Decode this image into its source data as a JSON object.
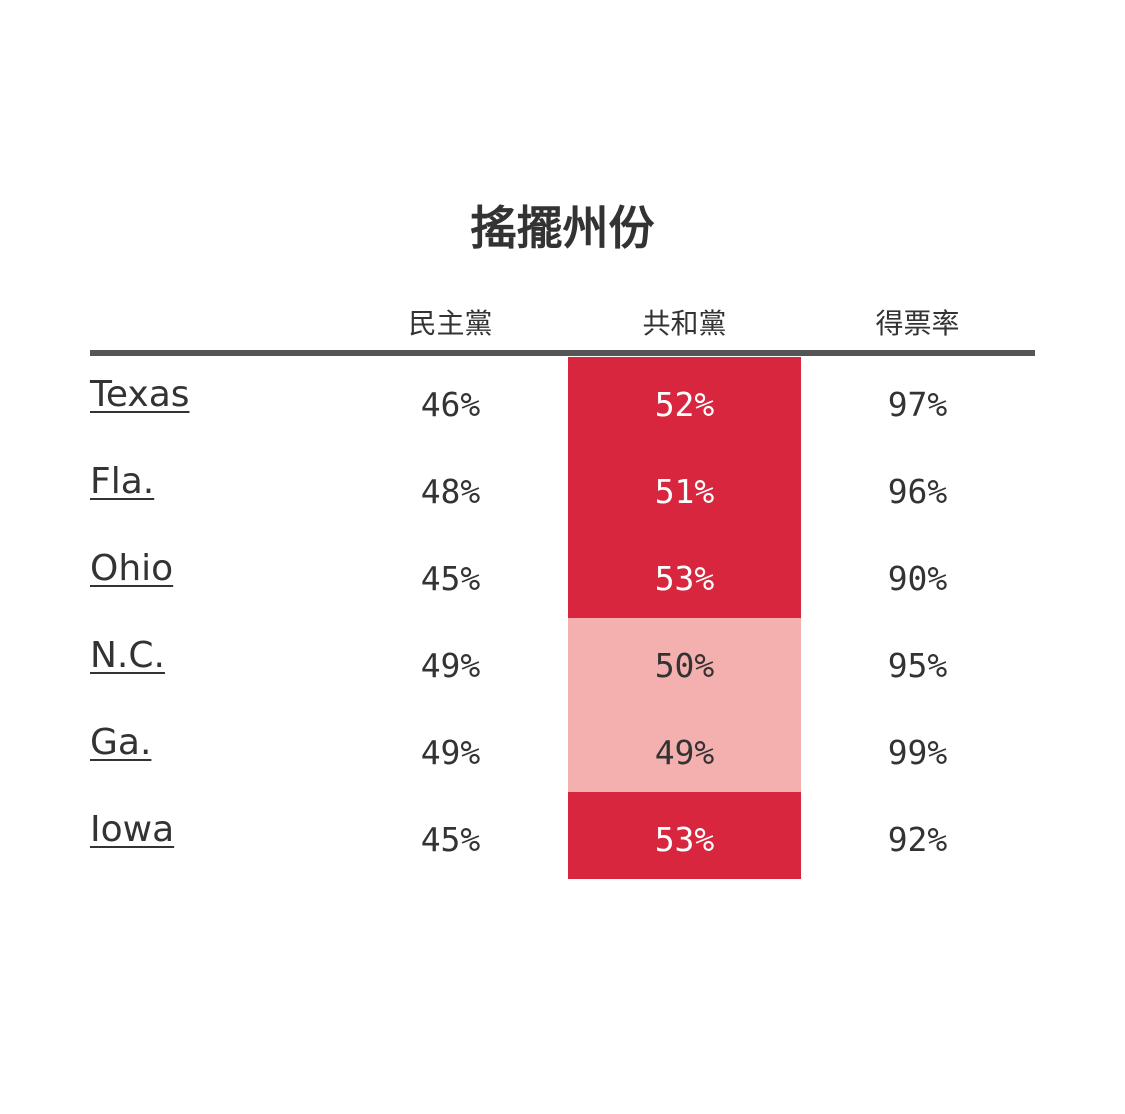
{
  "title": "搖擺州份",
  "columns": {
    "dem": "民主黨",
    "rep": "共和黨",
    "turnout": "得票率"
  },
  "colors": {
    "rep_strong": "#d7263d",
    "rep_light": "#f4b0ae",
    "rule": "#555555",
    "text": "#333333"
  },
  "rows": [
    {
      "state": "Texas",
      "dem": "46%",
      "rep": "52%",
      "turnout": "97%",
      "shade": "strong"
    },
    {
      "state": "Fla.",
      "dem": "48%",
      "rep": "51%",
      "turnout": "96%",
      "shade": "strong"
    },
    {
      "state": "Ohio",
      "dem": "45%",
      "rep": "53%",
      "turnout": "90%",
      "shade": "strong"
    },
    {
      "state": "N.C.",
      "dem": "49%",
      "rep": "50%",
      "turnout": "95%",
      "shade": "light"
    },
    {
      "state": "Ga.",
      "dem": "49%",
      "rep": "49%",
      "turnout": "99%",
      "shade": "light"
    },
    {
      "state": "Iowa",
      "dem": "45%",
      "rep": "53%",
      "turnout": "92%",
      "shade": "strong"
    }
  ]
}
